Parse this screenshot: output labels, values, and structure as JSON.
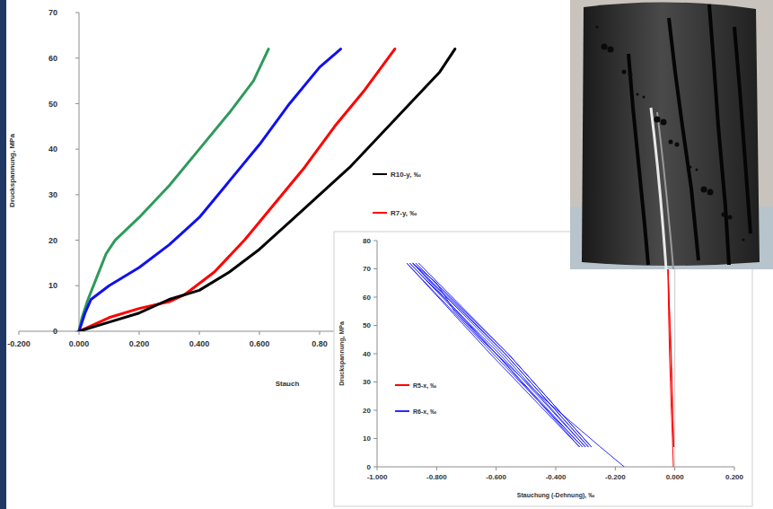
{
  "chart_data": [
    {
      "type": "line",
      "x_label": "Stauch",
      "y_label": "Druckspannung, MPa",
      "xlim": [
        -0.2,
        1.4
      ],
      "ylim": [
        0,
        70
      ],
      "xticks": [
        {
          "value": -0.2,
          "label": "-0.200"
        },
        {
          "value": 0,
          "label": "0.000"
        },
        {
          "value": 0.2,
          "label": "0.200"
        },
        {
          "value": 0.4,
          "label": "0.400"
        },
        {
          "value": 0.6,
          "label": "0.600"
        },
        {
          "value": 0.8,
          "label": "0.80"
        }
      ],
      "yticks": [
        0,
        10,
        20,
        30,
        40,
        50,
        60,
        70
      ],
      "grid": false,
      "legend": "right",
      "series": [
        {
          "color": "#2e9a5c",
          "x": [
            0,
            0.01,
            0.03,
            0.06,
            0.09,
            0.12,
            0.2,
            0.3,
            0.4,
            0.5,
            0.58,
            0.63
          ],
          "values": [
            0,
            3,
            7,
            12,
            17,
            20,
            25,
            32,
            40,
            48,
            55,
            62
          ]
        },
        {
          "color": "#1010f0",
          "x": [
            0,
            0.02,
            0.04,
            0.1,
            0.2,
            0.3,
            0.4,
            0.5,
            0.6,
            0.7,
            0.8,
            0.87
          ],
          "values": [
            0,
            4,
            7,
            10,
            14,
            19,
            25,
            33,
            41,
            50,
            58,
            62
          ]
        },
        {
          "name": "R7-y, ‰",
          "color": "#ff0000",
          "x": [
            0,
            0.1,
            0.2,
            0.3,
            0.35,
            0.45,
            0.55,
            0.65,
            0.75,
            0.85,
            0.95,
            1.05
          ],
          "values": [
            0,
            3,
            5,
            6.5,
            8,
            13,
            20,
            28,
            36,
            45,
            53,
            62
          ]
        },
        {
          "name": "R10-y, ‰",
          "color": "#000000",
          "x": [
            0,
            0.1,
            0.2,
            0.3,
            0.4,
            0.5,
            0.6,
            0.7,
            0.8,
            0.9,
            1.0,
            1.1,
            1.2,
            1.25
          ],
          "values": [
            0,
            2,
            4,
            7,
            9,
            13,
            18,
            24,
            30,
            36,
            43,
            50,
            57,
            62
          ]
        }
      ]
    },
    {
      "type": "line",
      "x_label": "Stauchung (-Dehnung), ‰",
      "y_label": "Druckspannung, MPa",
      "xlim": [
        -1.0,
        0.2
      ],
      "ylim": [
        0,
        80
      ],
      "xticks": [
        {
          "value": -1.0,
          "label": "-1.000"
        },
        {
          "value": -0.8,
          "label": "-0.800"
        },
        {
          "value": -0.6,
          "label": "-0.600"
        },
        {
          "value": -0.4,
          "label": "-0.400"
        },
        {
          "value": -0.2,
          "label": "-0.200"
        },
        {
          "value": 0,
          "label": "0.000"
        },
        {
          "value": 0.2,
          "label": "0.200"
        }
      ],
      "yticks": [
        0,
        10,
        20,
        30,
        40,
        50,
        60,
        70,
        80
      ],
      "grid": false,
      "legend": "left",
      "series": [
        {
          "name": "R6-x, ‰",
          "color": "#2a2aff",
          "x": [
            -0.17,
            -0.25,
            -0.35,
            -0.45,
            -0.55,
            -0.65,
            -0.74,
            -0.8,
            -0.88,
            -0.6,
            -0.32,
            -0.62,
            -0.9,
            -0.61,
            -0.31,
            -0.6,
            -0.89,
            -0.59,
            -0.3,
            -0.58,
            -0.88,
            -0.57,
            -0.29,
            -0.57,
            -0.87,
            -0.56,
            -0.28,
            -0.56,
            -0.86
          ],
          "values": [
            0,
            7,
            16,
            25,
            35,
            45,
            55,
            65,
            72,
            40,
            7,
            40,
            72,
            40,
            7,
            40,
            72,
            40,
            7,
            40,
            72,
            40,
            7,
            40,
            72,
            40,
            7,
            40,
            72
          ]
        },
        {
          "name": "R5-x, ‰",
          "color": "#ff0000",
          "x": [
            -0.005,
            -0.008,
            -0.012,
            -0.015,
            -0.018,
            -0.021,
            -0.024,
            -0.012,
            -0.004,
            -0.014,
            -0.023
          ],
          "values": [
            0,
            10,
            20,
            30,
            40,
            55,
            72,
            40,
            7,
            40,
            72
          ]
        }
      ]
    }
  ]
}
